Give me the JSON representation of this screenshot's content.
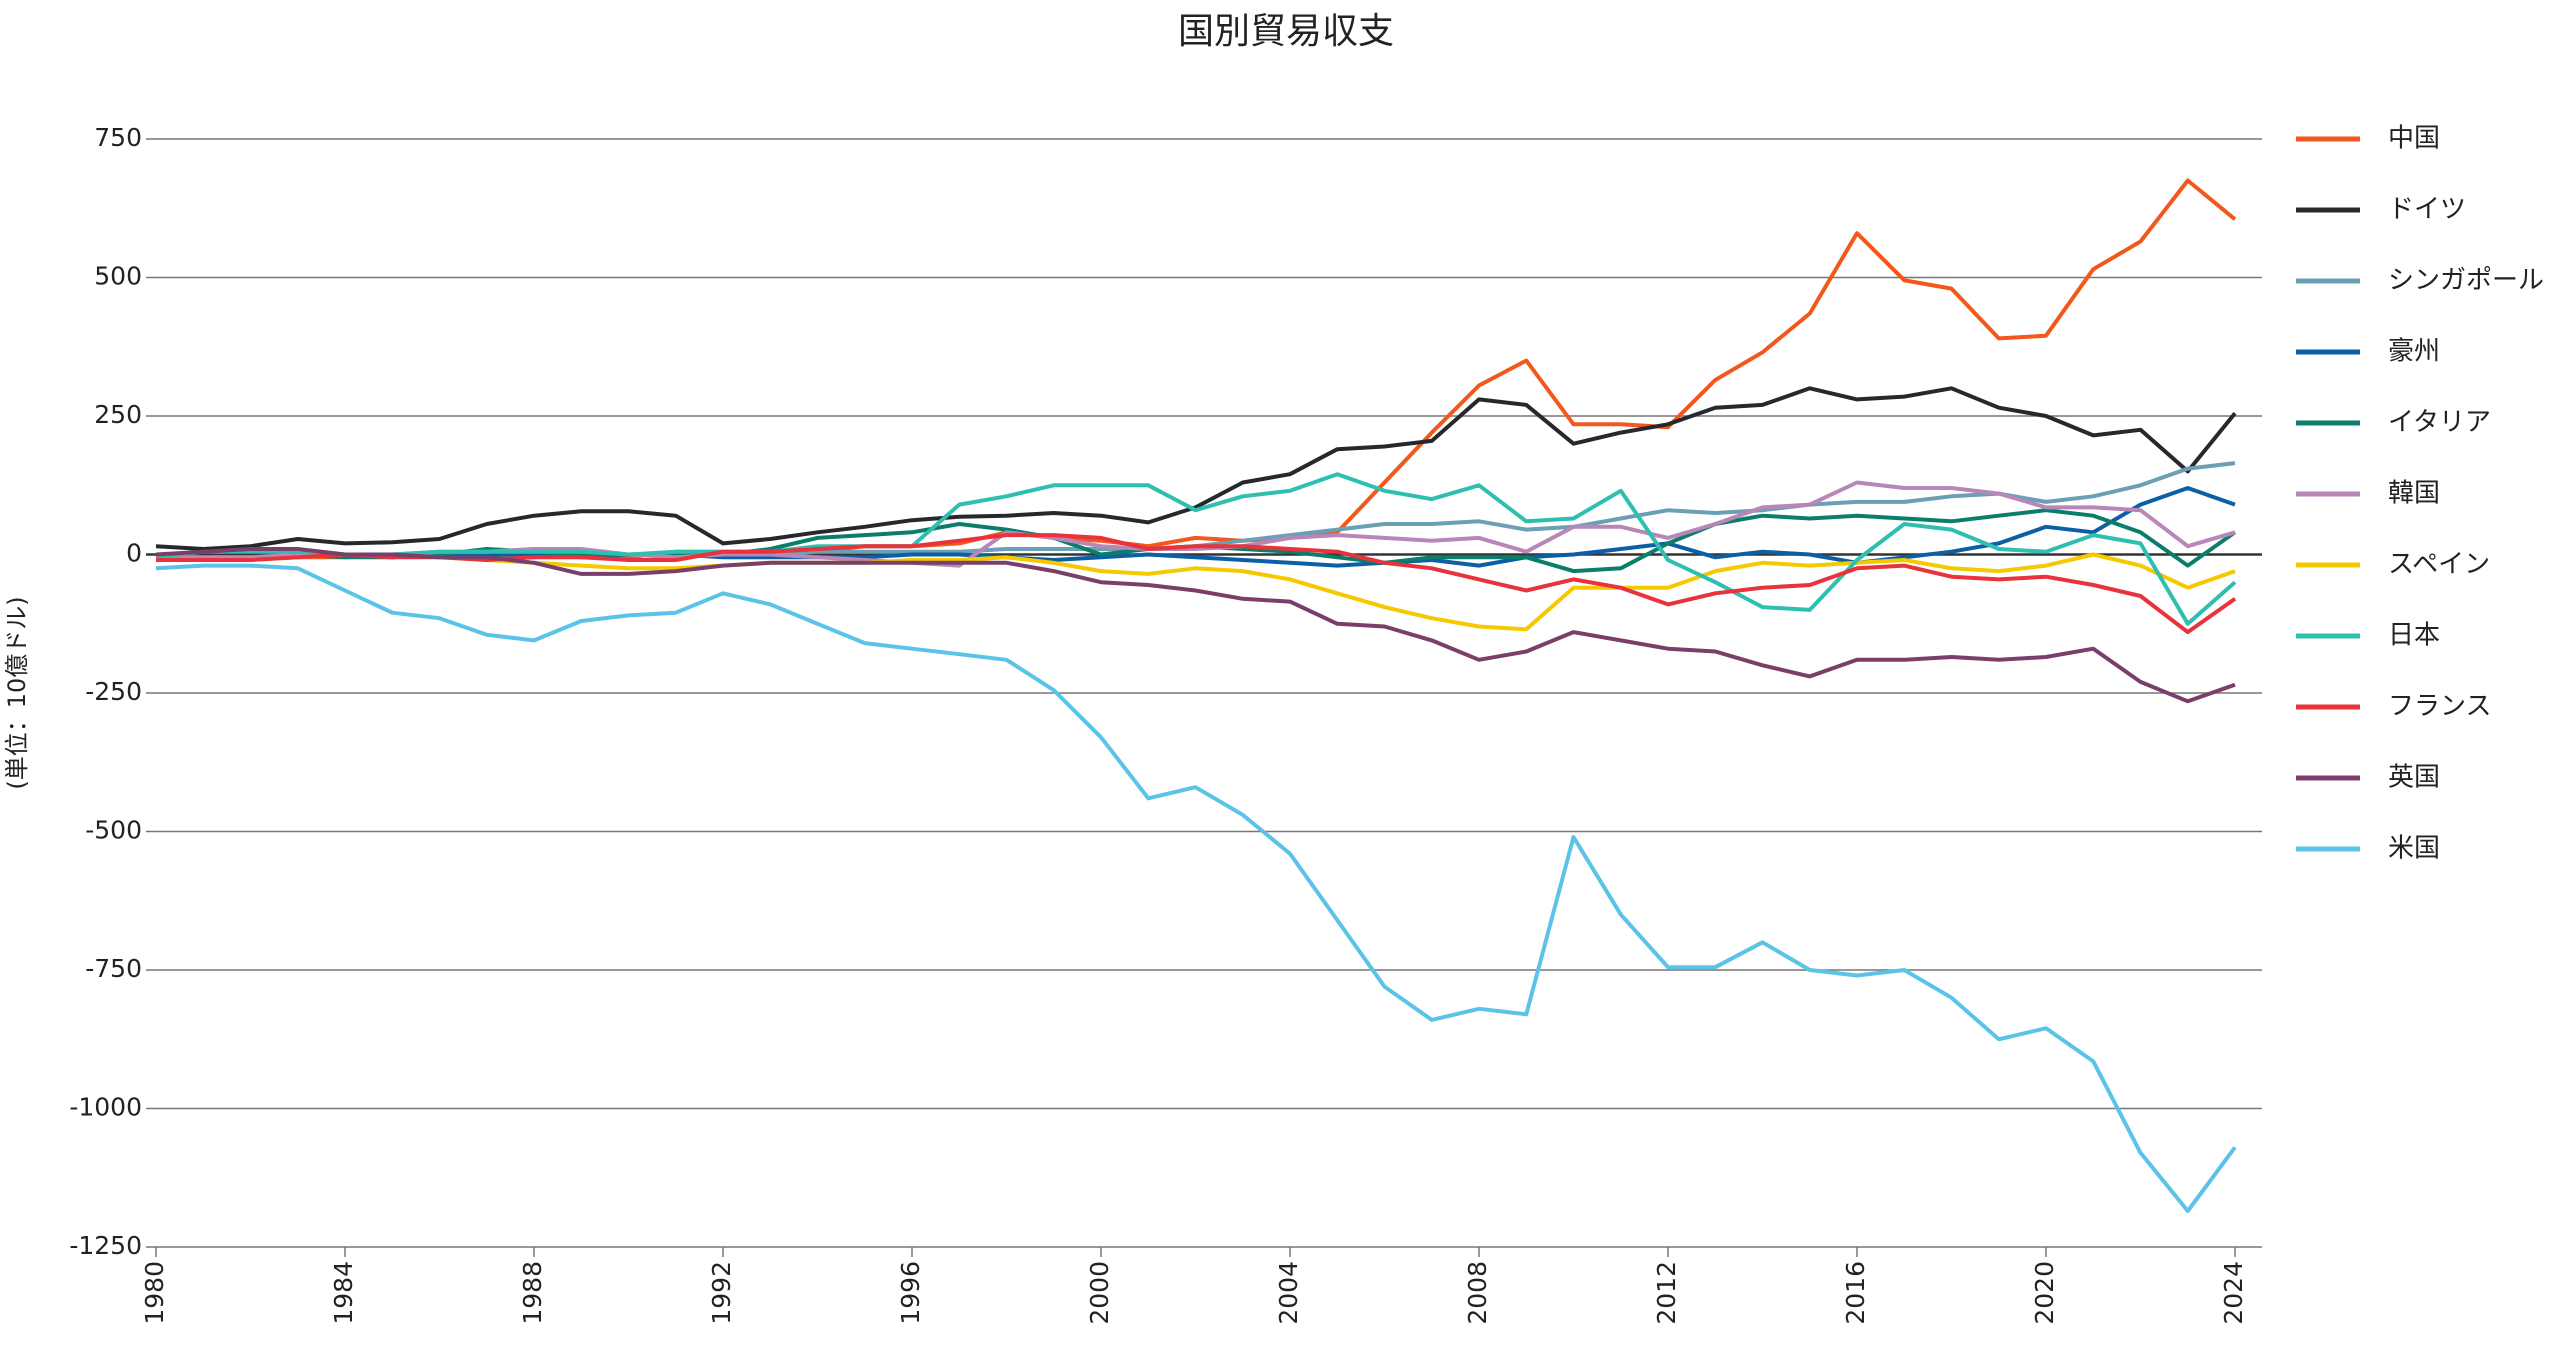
{
  "chart_data": {
    "type": "line",
    "title": "国別貿易収支",
    "y_label": "(単位：10億ドル)",
    "x": [
      1980,
      1981,
      1982,
      1983,
      1984,
      1985,
      1986,
      1987,
      1988,
      1989,
      1990,
      1991,
      1992,
      1993,
      1994,
      1995,
      1996,
      1997,
      1998,
      1999,
      2000,
      2001,
      2002,
      2003,
      2004,
      2005,
      2006,
      2007,
      2008,
      2009,
      2010,
      2011,
      2012,
      2013,
      2014,
      2015,
      2016,
      2017,
      2018,
      2019,
      2020,
      2021,
      2022,
      2023,
      2024
    ],
    "xlim": [
      1980,
      2024
    ],
    "xticks": [
      1980,
      1984,
      1988,
      1992,
      1996,
      2000,
      2004,
      2008,
      2012,
      2016,
      2020,
      2024
    ],
    "ylim": [
      -1250,
      750
    ],
    "yticks": [
      -1250,
      -1000,
      -750,
      -500,
      -250,
      0,
      250,
      500,
      750
    ],
    "grid": true,
    "series": [
      {
        "name": "中国",
        "color": "#f2581c",
        "values": [
          0,
          -5,
          -5,
          -5,
          -5,
          0,
          -5,
          -5,
          -5,
          0,
          -5,
          5,
          5,
          5,
          5,
          15,
          15,
          20,
          40,
          30,
          25,
          15,
          30,
          25,
          30,
          40,
          130,
          220,
          305,
          350,
          235,
          235,
          230,
          315,
          365,
          435,
          580,
          495,
          480,
          390,
          395,
          515,
          565,
          675,
          605
        ]
      },
      {
        "name": "ドイツ",
        "color": "#25282d",
        "values": [
          15,
          10,
          15,
          28,
          20,
          22,
          28,
          55,
          70,
          78,
          78,
          70,
          20,
          28,
          40,
          50,
          62,
          68,
          70,
          75,
          70,
          58,
          85,
          130,
          145,
          190,
          195,
          205,
          280,
          270,
          200,
          220,
          235,
          265,
          270,
          300,
          280,
          285,
          300,
          265,
          250,
          215,
          225,
          150,
          255
        ]
      },
      {
        "name": "シンガポール",
        "color": "#6a9fb5",
        "values": [
          -5,
          -5,
          -5,
          -5,
          0,
          0,
          0,
          0,
          0,
          0,
          0,
          0,
          0,
          0,
          5,
          5,
          5,
          5,
          10,
          10,
          10,
          10,
          15,
          25,
          35,
          45,
          55,
          55,
          60,
          45,
          50,
          65,
          80,
          75,
          80,
          90,
          95,
          95,
          105,
          110,
          95,
          105,
          125,
          155,
          165
        ]
      },
      {
        "name": "豪州",
        "color": "#0b5fa5",
        "values": [
          0,
          -5,
          -5,
          0,
          0,
          -5,
          0,
          0,
          0,
          -5,
          0,
          0,
          -5,
          -5,
          -5,
          -5,
          0,
          0,
          -5,
          -10,
          -5,
          0,
          -5,
          -10,
          -15,
          -20,
          -15,
          -10,
          -20,
          -5,
          0,
          10,
          20,
          -5,
          5,
          0,
          -15,
          -5,
          5,
          20,
          50,
          40,
          90,
          120,
          90
        ]
      },
      {
        "name": "イタリア",
        "color": "#0b7e6b",
        "values": [
          -5,
          -5,
          -5,
          0,
          -5,
          -5,
          0,
          10,
          5,
          0,
          0,
          0,
          0,
          10,
          30,
          35,
          40,
          55,
          45,
          30,
          0,
          10,
          15,
          10,
          5,
          -5,
          -15,
          -5,
          -5,
          -5,
          -30,
          -25,
          20,
          55,
          70,
          65,
          70,
          65,
          60,
          70,
          80,
          70,
          40,
          -20,
          40
        ]
      },
      {
        "name": "韓国",
        "color": "#b887b8",
        "values": [
          -5,
          -5,
          -5,
          0,
          0,
          0,
          5,
          5,
          10,
          10,
          0,
          -5,
          0,
          0,
          -5,
          -10,
          -15,
          -20,
          40,
          30,
          15,
          10,
          10,
          15,
          30,
          35,
          30,
          25,
          30,
          5,
          50,
          50,
          30,
          55,
          85,
          90,
          130,
          120,
          120,
          110,
          85,
          85,
          80,
          15,
          40
        ]
      },
      {
        "name": "スペイン",
        "color": "#f5c800",
        "values": [
          -10,
          -10,
          -10,
          -5,
          0,
          0,
          -5,
          -10,
          -15,
          -20,
          -25,
          -25,
          -20,
          -15,
          -15,
          -15,
          -10,
          -10,
          -5,
          -15,
          -30,
          -35,
          -25,
          -30,
          -45,
          -70,
          -95,
          -115,
          -130,
          -135,
          -60,
          -60,
          -60,
          -30,
          -15,
          -20,
          -15,
          -10,
          -25,
          -30,
          -20,
          0,
          -20,
          -60,
          -30
        ]
      },
      {
        "name": "日本",
        "color": "#2fbfb0",
        "values": [
          -5,
          5,
          5,
          5,
          0,
          0,
          5,
          5,
          5,
          5,
          0,
          5,
          5,
          5,
          15,
          15,
          15,
          90,
          105,
          125,
          125,
          125,
          80,
          105,
          115,
          145,
          115,
          100,
          125,
          60,
          65,
          115,
          -10,
          -50,
          -95,
          -100,
          -10,
          55,
          45,
          10,
          5,
          35,
          20,
          -125,
          -50
        ]
      },
      {
        "name": "フランス",
        "color": "#e8323c",
        "values": [
          -10,
          -10,
          -10,
          -5,
          0,
          -5,
          -5,
          -10,
          -5,
          -5,
          -10,
          -10,
          5,
          5,
          10,
          15,
          15,
          25,
          35,
          35,
          30,
          10,
          15,
          15,
          10,
          5,
          -15,
          -25,
          -45,
          -65,
          -45,
          -60,
          -90,
          -70,
          -60,
          -55,
          -25,
          -20,
          -40,
          -45,
          -40,
          -55,
          -75,
          -140,
          -80
        ]
      },
      {
        "name": "英国",
        "color": "#7a3e6b",
        "values": [
          0,
          5,
          10,
          10,
          0,
          0,
          -5,
          -5,
          -15,
          -35,
          -35,
          -30,
          -20,
          -15,
          -15,
          -15,
          -15,
          -15,
          -15,
          -30,
          -50,
          -55,
          -65,
          -80,
          -85,
          -125,
          -130,
          -155,
          -190,
          -175,
          -140,
          -155,
          -170,
          -175,
          -200,
          -220,
          -190,
          -190,
          -185,
          -190,
          -185,
          -170,
          -230,
          -265,
          -235
        ]
      },
      {
        "name": "米国",
        "color": "#5bc3e8",
        "values": [
          -25,
          -20,
          -20,
          -25,
          -65,
          -105,
          -115,
          -145,
          -155,
          -120,
          -110,
          -105,
          -70,
          -90,
          -125,
          -160,
          -170,
          -180,
          -190,
          -245,
          -330,
          -440,
          -420,
          -470,
          -540,
          -660,
          -780,
          -840,
          -820,
          -830,
          -510,
          -650,
          -745,
          -745,
          -700,
          -750,
          -760,
          -750,
          -800,
          -875,
          -855,
          -915,
          -1080,
          -1185,
          -1070
        ]
      }
    ]
  }
}
